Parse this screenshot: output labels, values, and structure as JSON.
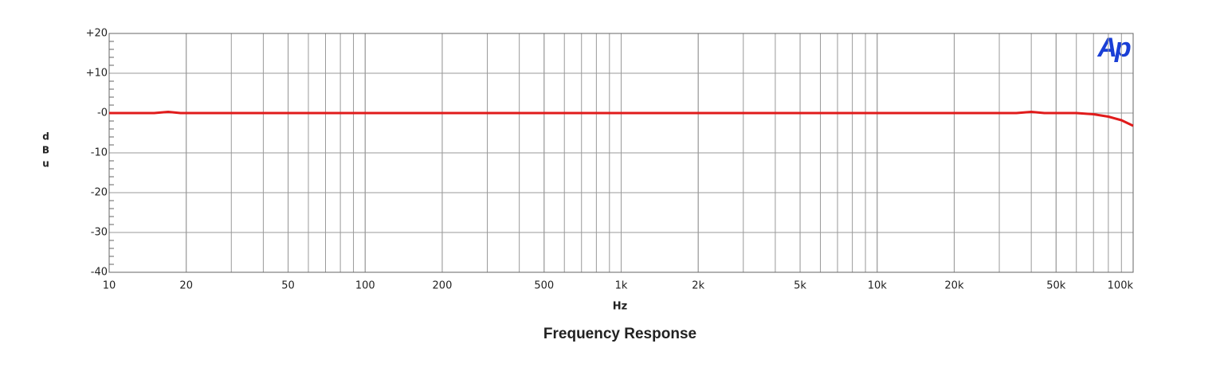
{
  "chart_data": {
    "type": "line",
    "title": "Frequency Response",
    "xlabel": "Hz",
    "ylabel": "dBu",
    "logo": "Ap",
    "log_x": true,
    "grid": true,
    "xlim": [
      10,
      100000
    ],
    "xticks": [
      10,
      20,
      50,
      100,
      200,
      500,
      {
        "value": 1000,
        "label": "1k"
      },
      {
        "value": 2000,
        "label": "2k"
      },
      {
        "value": 5000,
        "label": "5k"
      },
      {
        "value": 10000,
        "label": "10k"
      },
      {
        "value": 20000,
        "label": "20k"
      },
      {
        "value": 50000,
        "label": "50k"
      },
      {
        "value": 100000,
        "label": "100k"
      }
    ],
    "ylim": [
      -40,
      20
    ],
    "yticks": [
      {
        "value": 20,
        "label": "+20"
      },
      {
        "value": 10,
        "label": "+10"
      },
      {
        "value": 0,
        "label": "-0"
      },
      -10,
      -20,
      -30,
      -40
    ],
    "series": [
      {
        "name": "dBu",
        "color": "#e01b1b",
        "x": [
          10,
          15,
          17,
          19,
          100,
          1000,
          10000,
          35000,
          40000,
          45000,
          60000,
          70000,
          80000,
          90000,
          100000
        ],
        "values": [
          0,
          0,
          0.3,
          0,
          0,
          0,
          0,
          0,
          0.3,
          0,
          0,
          -0.3,
          -0.9,
          -1.8,
          -3.2
        ]
      }
    ]
  }
}
